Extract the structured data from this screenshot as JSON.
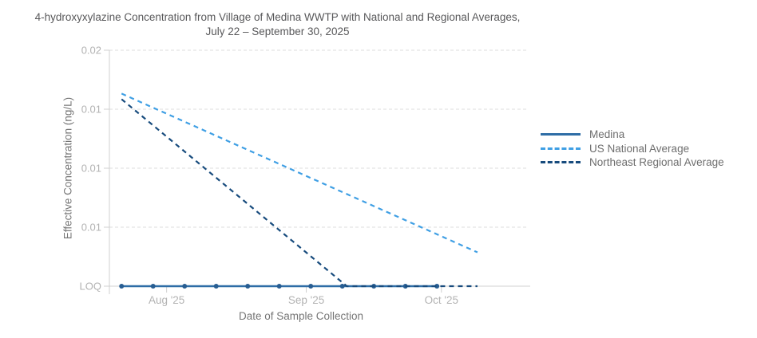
{
  "title": {
    "line1": "4-hydroxyxylazine Concentration from Village of Medina WWTP with National and Regional Averages,",
    "line2": "July 22 – September 30, 2025"
  },
  "axes": {
    "x_title": "Date of Sample Collection",
    "y_title": "Effective Concentration (ng/L)"
  },
  "colors": {
    "title_text": "#58585a",
    "axis_title_text": "#767676",
    "tick_text": "#b3b3b3",
    "legend_text": "#6e6e6e",
    "gridline": "#dcdcdc",
    "axis_line": "#d0d0d0"
  },
  "chart_data": {
    "type": "line",
    "title": "4-hydroxyxylazine Concentration from Village of Medina WWTP with National and Regional Averages, July 22 – September 30, 2025",
    "xlabel": "Date of Sample Collection",
    "ylabel": "Effective Concentration (ng/L)",
    "y_scale": "log",
    "y_domain": [
      0.005,
      0.02
    ],
    "y_loq_value": 0.005,
    "x_epoch_date": "2025-07-22",
    "x_domain_days": [
      -2.7,
      90
    ],
    "grid": "horizontal-dashed",
    "legend_position": "right",
    "x_ticks": [
      {
        "day": 10,
        "label": "Aug '25"
      },
      {
        "day": 41,
        "label": "Sep '25"
      },
      {
        "day": 71,
        "label": "Oct '25"
      }
    ],
    "y_ticks": [
      {
        "value": 0.02,
        "label": "0.02"
      },
      {
        "value": 0.014142,
        "label": "0.01"
      },
      {
        "value": 0.01,
        "label": "0.01"
      },
      {
        "value": 0.0070711,
        "label": "0.01"
      },
      {
        "value": 0.005,
        "label": "LOQ"
      }
    ],
    "series": [
      {
        "name": "Medina",
        "style": "solid",
        "color": "#2e6da6",
        "marker_color": "#275d92",
        "markers": true,
        "points": [
          {
            "date": "2025-07-22",
            "day": 0,
            "value": "LOQ"
          },
          {
            "date": "2025-07-29",
            "day": 7,
            "value": "LOQ"
          },
          {
            "date": "2025-08-05",
            "day": 14,
            "value": "LOQ"
          },
          {
            "date": "2025-08-12",
            "day": 21,
            "value": "LOQ"
          },
          {
            "date": "2025-08-19",
            "day": 28,
            "value": "LOQ"
          },
          {
            "date": "2025-08-26",
            "day": 35,
            "value": "LOQ"
          },
          {
            "date": "2025-09-02",
            "day": 42,
            "value": "LOQ"
          },
          {
            "date": "2025-09-09",
            "day": 49,
            "value": "LOQ"
          },
          {
            "date": "2025-09-16",
            "day": 56,
            "value": "LOQ"
          },
          {
            "date": "2025-09-23",
            "day": 63,
            "value": "LOQ"
          },
          {
            "date": "2025-09-30",
            "day": 70,
            "value": "LOQ"
          }
        ]
      },
      {
        "name": "US National Average",
        "style": "dashed",
        "color": "#3f9fe4",
        "markers": false,
        "points": [
          {
            "date": "2025-07-22",
            "day": 0,
            "value": 0.0155
          },
          {
            "date": "2025-10-09",
            "day": 79,
            "value": 0.0061
          }
        ]
      },
      {
        "name": "Northeast Regional Average",
        "style": "dashed",
        "color": "#174b7d",
        "markers": false,
        "points": [
          {
            "date": "2025-07-22",
            "day": 0,
            "value": 0.015
          },
          {
            "date": "2025-09-10",
            "day": 50,
            "value": "LOQ"
          },
          {
            "date": "2025-10-09",
            "day": 79,
            "value": "LOQ"
          }
        ]
      }
    ]
  }
}
